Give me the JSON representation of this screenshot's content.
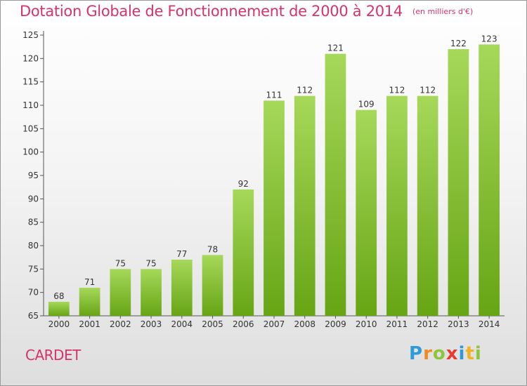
{
  "chart_data": {
    "type": "bar",
    "title": "Dotation Globale de Fonctionnement de 2000 à 2014",
    "subtitle": "(en milliers d'€)",
    "categories": [
      "2000",
      "2001",
      "2002",
      "2003",
      "2004",
      "2005",
      "2006",
      "2007",
      "2008",
      "2009",
      "2010",
      "2011",
      "2012",
      "2013",
      "2014"
    ],
    "values": [
      68,
      71,
      75,
      75,
      77,
      78,
      92,
      111,
      112,
      121,
      109,
      112,
      112,
      122,
      123
    ],
    "ylim": [
      65,
      125
    ],
    "yticks": [
      65,
      70,
      75,
      80,
      85,
      90,
      95,
      100,
      105,
      110,
      115,
      120,
      125
    ],
    "grid": false,
    "bar_color": "#7cc02a"
  },
  "commune": "CARDET",
  "logo": {
    "text": "Proxiti"
  }
}
